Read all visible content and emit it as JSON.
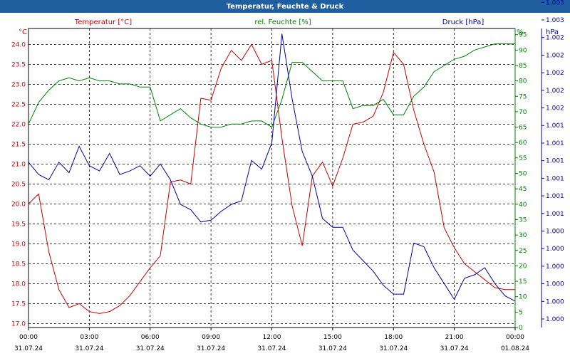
{
  "title": "Temperatur, Feuchte & Druck",
  "colors": {
    "title_bg": "#1f5fa0",
    "temperature": "#cc0000",
    "humidity": "#008000",
    "pressure": "#0000aa"
  },
  "chart_data": {
    "type": "line",
    "title": "Temperatur, Feuchte & Druck",
    "x": [
      "00:00",
      "00:30",
      "01:00",
      "01:30",
      "02:00",
      "02:30",
      "03:00",
      "03:30",
      "04:00",
      "04:30",
      "05:00",
      "05:30",
      "06:00",
      "06:30",
      "07:00",
      "07:30",
      "08:00",
      "08:30",
      "09:00",
      "09:30",
      "10:00",
      "10:30",
      "11:00",
      "11:30",
      "12:00",
      "12:30",
      "13:00",
      "13:30",
      "14:00",
      "14:30",
      "15:00",
      "15:30",
      "16:00",
      "16:30",
      "17:00",
      "17:30",
      "18:00",
      "18:30",
      "19:00",
      "19:30",
      "20:00",
      "20:30",
      "21:00",
      "21:30",
      "22:00",
      "22:30",
      "23:00",
      "23:30",
      "24:00"
    ],
    "x_tick_labels": [
      {
        "time": "00:00",
        "date": "31.07.24"
      },
      {
        "time": "03:00",
        "date": "31.07.24"
      },
      {
        "time": "06:00",
        "date": "31.07.24"
      },
      {
        "time": "09:00",
        "date": "31.07.24"
      },
      {
        "time": "12:00",
        "date": "31.07.24"
      },
      {
        "time": "15:00",
        "date": "31.07.24"
      },
      {
        "time": "18:00",
        "date": "31.07.24"
      },
      {
        "time": "21:00",
        "date": "31.07.24"
      },
      {
        "time": "00:00",
        "date": "01.08.24"
      }
    ],
    "grid": true,
    "axes": {
      "left": {
        "unit": "°C",
        "min": 16.9,
        "max": 24.4,
        "ticks": [
          "17.0",
          "17.5",
          "18.0",
          "18.5",
          "19.0",
          "19.5",
          "20.0",
          "20.5",
          "21.0",
          "21.5",
          "22.0",
          "22.5",
          "23.0",
          "23.5",
          "24.0"
        ]
      },
      "right_humidity": {
        "unit": "%",
        "min": 0,
        "max": 97,
        "ticks": [
          "0",
          "5",
          "10",
          "15",
          "20",
          "25",
          "30",
          "35",
          "40",
          "45",
          "50",
          "55",
          "60",
          "65",
          "70",
          "75",
          "80",
          "85",
          "90",
          "95"
        ]
      },
      "right_pressure": {
        "unit": "hPa",
        "min": 0,
        "max": 17,
        "ticks": [
          "1.000",
          "1.000",
          "1.000",
          "1.000",
          "1.000",
          "1.000",
          "1.001",
          "1.001",
          "1.001",
          "1.001",
          "1.001",
          "1.001",
          "1.002",
          "1.002",
          "1.002",
          "1.002",
          "1.002",
          "1.003",
          "1.003"
        ]
      }
    },
    "series": [
      {
        "name": "Temperatur [°C]",
        "axis": "left",
        "values": [
          20.0,
          20.25,
          18.8,
          17.85,
          17.4,
          17.5,
          17.3,
          17.25,
          17.3,
          17.45,
          17.7,
          18.05,
          18.4,
          18.7,
          20.55,
          20.6,
          20.5,
          22.65,
          22.6,
          23.4,
          23.85,
          23.6,
          24.0,
          23.5,
          23.6,
          21.65,
          19.95,
          18.95,
          20.7,
          21.05,
          20.45,
          21.15,
          22.0,
          22.05,
          22.2,
          22.8,
          23.8,
          23.5,
          22.35,
          21.5,
          20.8,
          19.4,
          18.9,
          18.5,
          18.3,
          18.1,
          17.9,
          17.85,
          17.85
        ]
      },
      {
        "name": "rel. Feuchte [%]",
        "axis": "right_humidity",
        "values": [
          66,
          73,
          77,
          80,
          81,
          80,
          81,
          80,
          80,
          79,
          79,
          78,
          78,
          67,
          69,
          71,
          68,
          66,
          65,
          65,
          66,
          66,
          67,
          67,
          65,
          74,
          86,
          86,
          83,
          80,
          80,
          80,
          71,
          72,
          72,
          74,
          69,
          69,
          75,
          78,
          83,
          85,
          87,
          88,
          90,
          91,
          92,
          92,
          92
        ]
      },
      {
        "name": "Druck [hPa]",
        "axis": "right_pressure",
        "values": [
          9.4,
          8.7,
          8.4,
          9.4,
          8.8,
          10.3,
          9.2,
          8.9,
          9.9,
          8.7,
          8.9,
          9.2,
          8.6,
          9.3,
          8.4,
          7.0,
          6.7,
          6.0,
          6.1,
          6.6,
          7.0,
          7.2,
          9.5,
          9.0,
          10.5,
          16.7,
          13.0,
          10.0,
          8.6,
          6.2,
          5.7,
          5.7,
          4.4,
          3.8,
          3.2,
          2.4,
          1.9,
          1.9,
          4.8,
          4.6,
          3.4,
          2.5,
          1.6,
          2.8,
          3.0,
          3.4,
          2.5,
          1.8,
          1.5
        ]
      }
    ]
  }
}
